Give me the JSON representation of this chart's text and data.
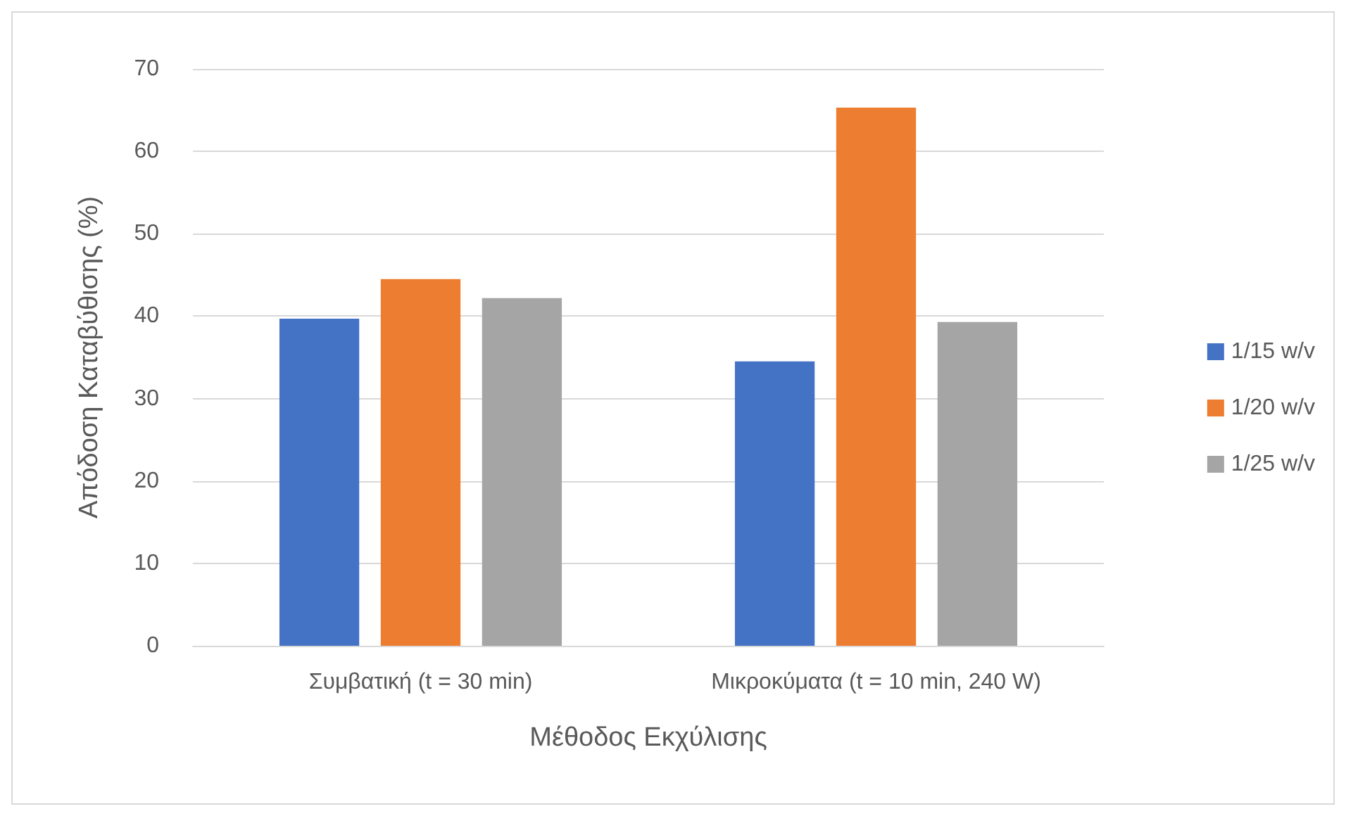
{
  "chart_data": {
    "type": "bar",
    "xlabel": "Μέθοδος Εκχύλισης",
    "ylabel": "Απόδοση Καταβύθισης (%)",
    "categories": [
      "Συμβατική (t = 30 min)",
      "Μικροκύματα (t = 10 min, 240 W)"
    ],
    "series": [
      {
        "name": "1/15 w/v",
        "color": "#4472c4",
        "values": [
          39.7,
          34.5
        ]
      },
      {
        "name": "1/20 w/v",
        "color": "#ed7d31",
        "values": [
          44.5,
          65.3
        ]
      },
      {
        "name": "1/25 w/v",
        "color": "#a5a5a5",
        "values": [
          42.2,
          39.3
        ]
      }
    ],
    "ylim": [
      0,
      70
    ],
    "yticks": [
      0,
      10,
      20,
      30,
      40,
      50,
      60,
      70
    ],
    "grid": "y",
    "legend": "right"
  }
}
